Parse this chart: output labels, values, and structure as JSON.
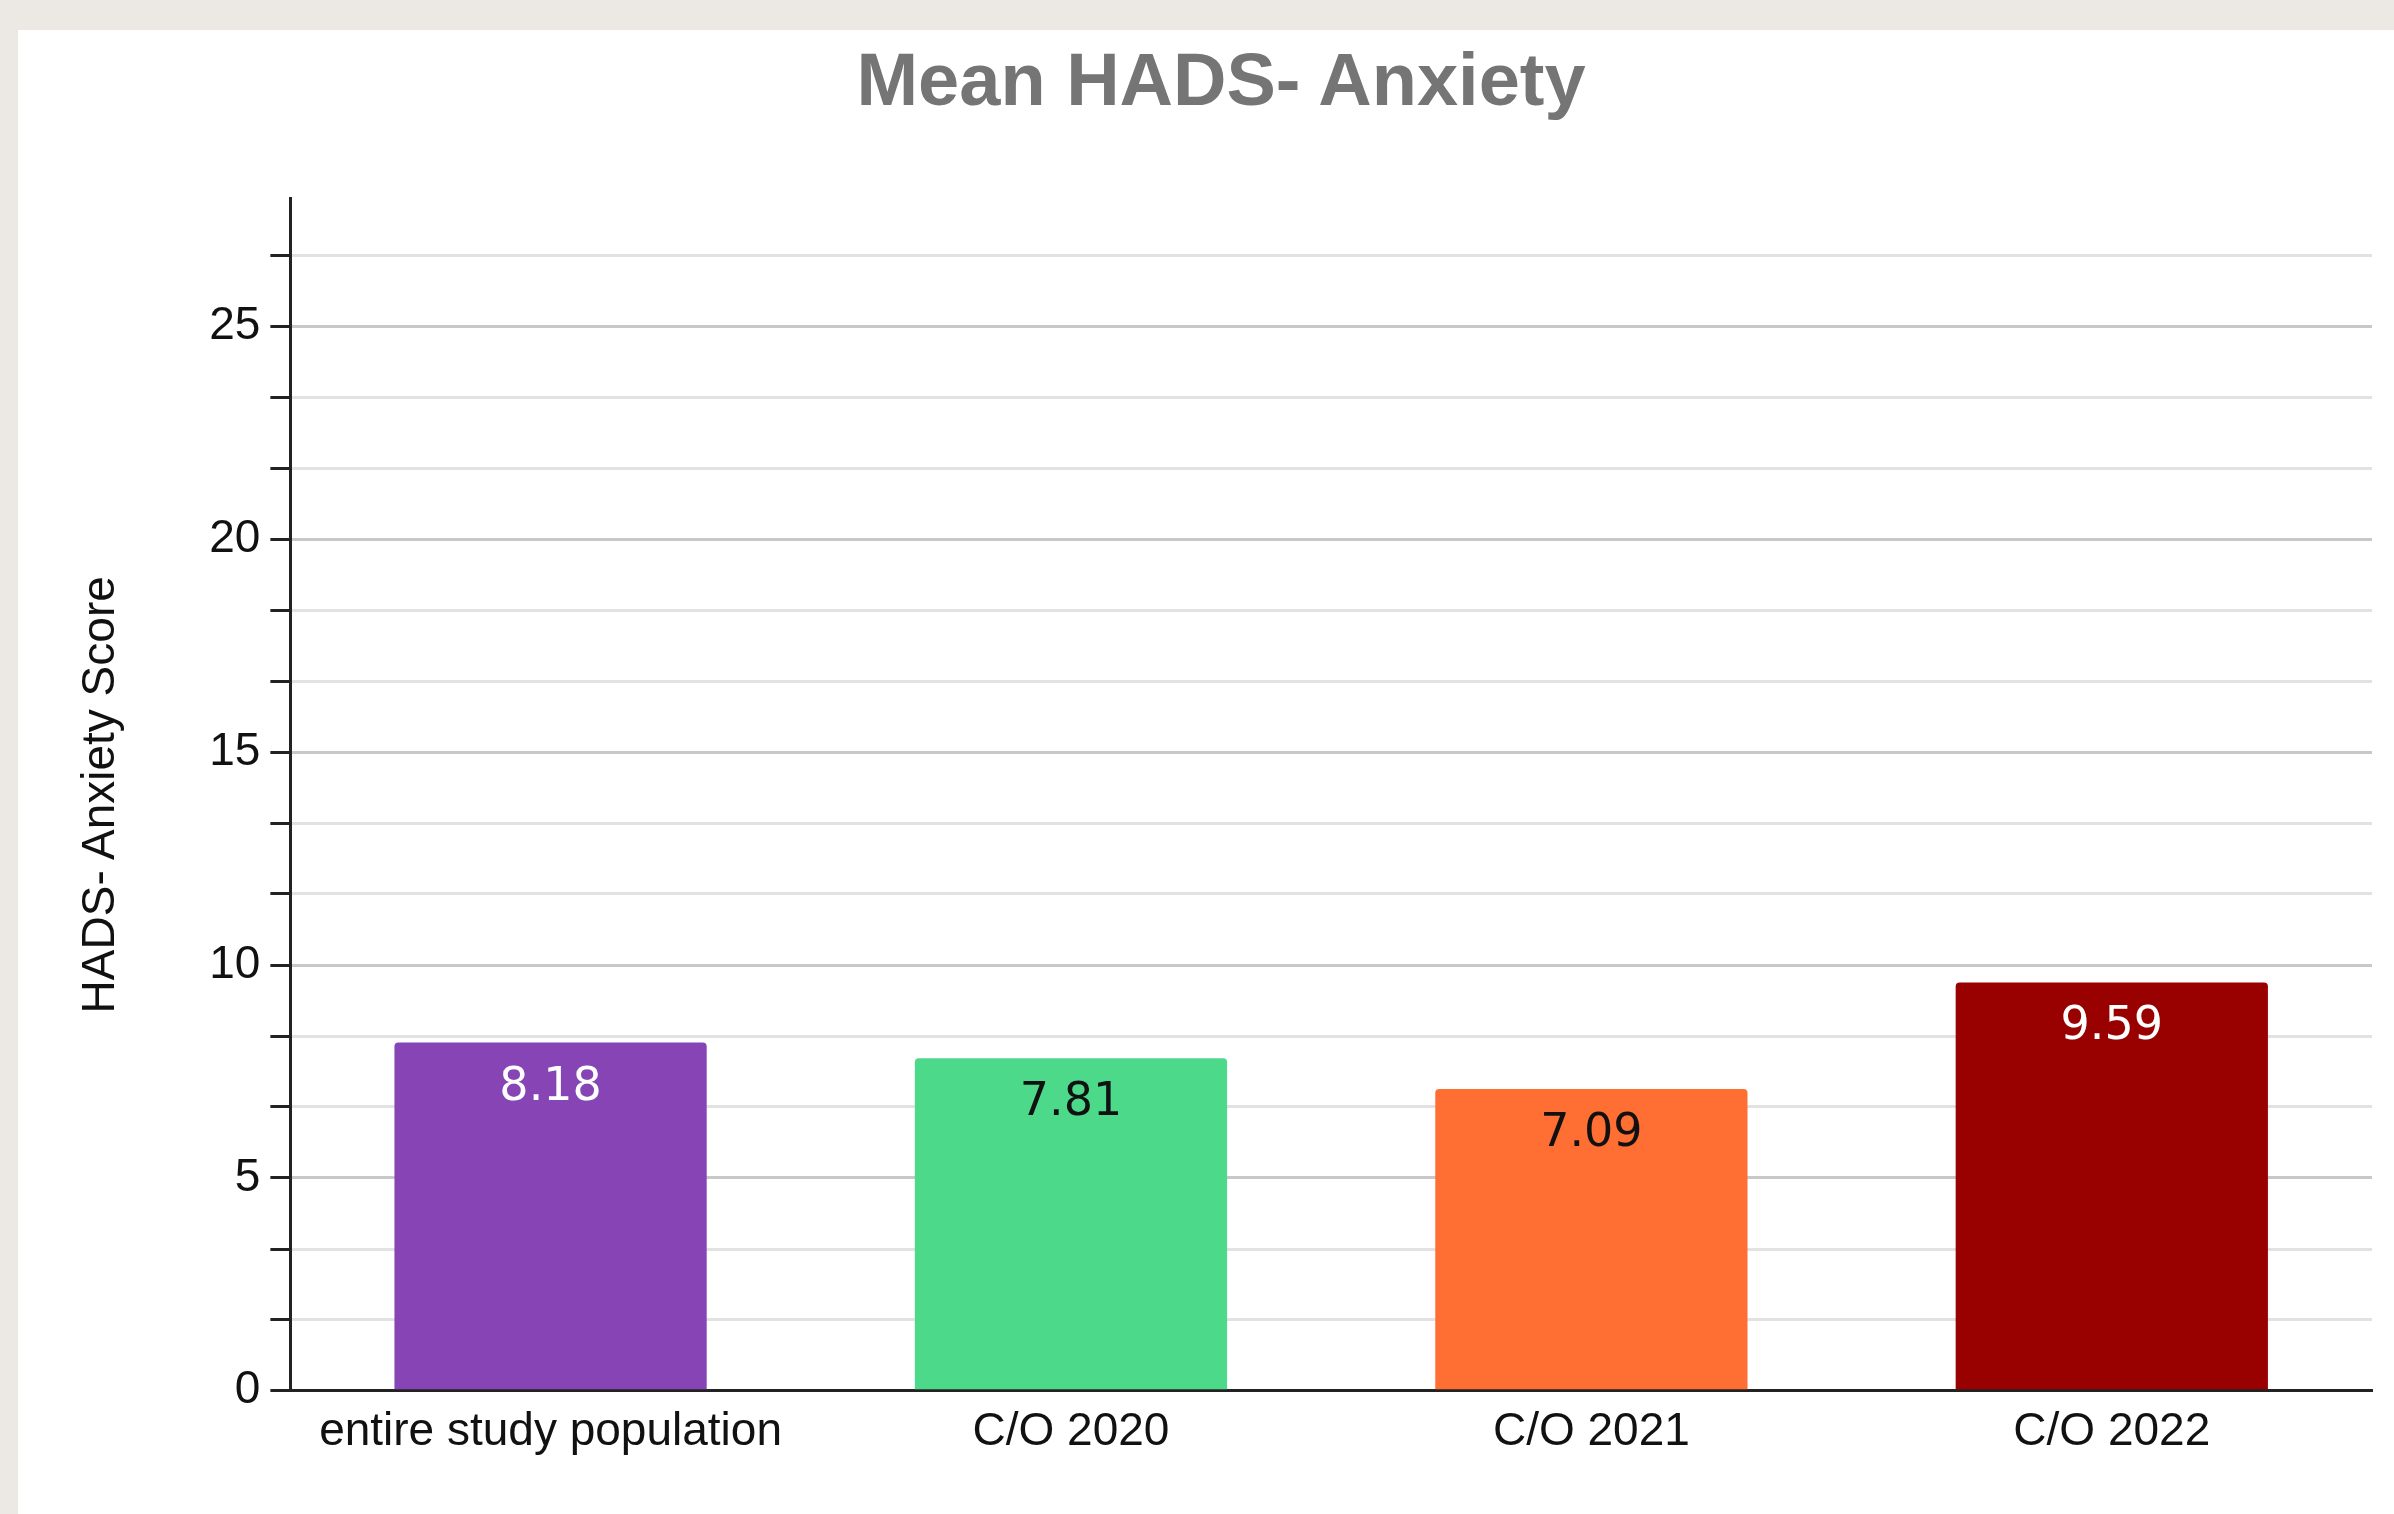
{
  "chart_data": {
    "type": "bar",
    "title": "Mean HADS- Anxiety",
    "ylabel": "HADS- Anxiety Score",
    "categories": [
      "entire study population",
      "C/O 2020",
      "C/O 2021",
      "C/O 2022"
    ],
    "values": [
      8.18,
      7.81,
      7.09,
      9.59
    ],
    "colors": [
      "#8644b4",
      "#4cd98a",
      "#ff6e33",
      "#990000"
    ],
    "ylim": [
      0,
      28
    ],
    "yticks": [
      0,
      {
        "value": 1.67,
        "label": null
      },
      {
        "value": 3.33,
        "label": null
      },
      5,
      {
        "value": 6.67,
        "label": null
      },
      {
        "value": 8.33,
        "label": null
      },
      10,
      {
        "value": 11.67,
        "label": null
      },
      {
        "value": 13.33,
        "label": null
      },
      15,
      {
        "value": 16.67,
        "label": null
      },
      {
        "value": 18.33,
        "label": null
      },
      20,
      {
        "value": 21.67,
        "label": null
      },
      {
        "value": 23.33,
        "label": null
      },
      25,
      {
        "value": 26.67,
        "label": null
      }
    ],
    "grid": "y",
    "legend": false,
    "data_labels": true
  }
}
